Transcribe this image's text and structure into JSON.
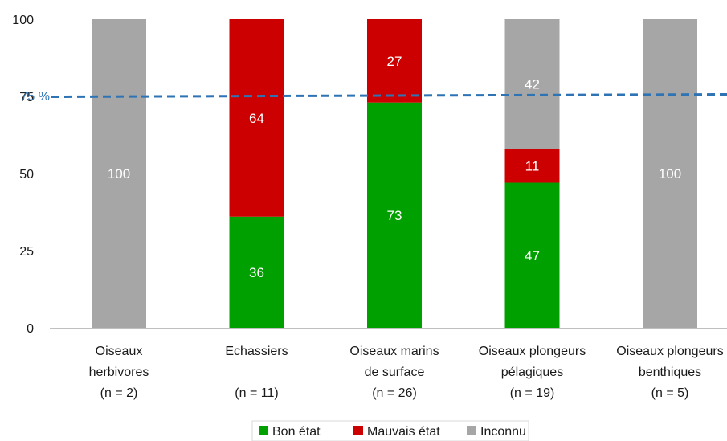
{
  "chart_data": {
    "type": "bar",
    "stacked": true,
    "categories": [
      [
        "Oiseaux",
        "herbivores",
        "(n = 2)"
      ],
      [
        "Echassiers",
        "",
        "(n = 11)"
      ],
      [
        "Oiseaux marins",
        "de surface",
        "(n = 26)"
      ],
      [
        "Oiseaux plongeurs",
        "pélagiques",
        "(n = 19)"
      ],
      [
        "Oiseaux plongeurs",
        "benthiques",
        "(n = 5)"
      ]
    ],
    "series": [
      {
        "name": "Bon état",
        "color": "#00a000",
        "values": [
          0,
          36,
          73,
          47,
          0
        ]
      },
      {
        "name": "Mauvais état",
        "color": "#cc0000",
        "values": [
          0,
          64,
          27,
          11,
          0
        ]
      },
      {
        "name": "Inconnu",
        "color": "#a6a6a6",
        "values": [
          100,
          0,
          0,
          42,
          100
        ]
      }
    ],
    "ylim": [
      0,
      100
    ],
    "yticks": [
      "0",
      "25",
      "50",
      "75",
      "100"
    ],
    "reference_line": {
      "value": 75,
      "label": "75 %",
      "color": "#2e74b5",
      "style": "dashed"
    },
    "grid": false,
    "legend_position": "bottom"
  }
}
